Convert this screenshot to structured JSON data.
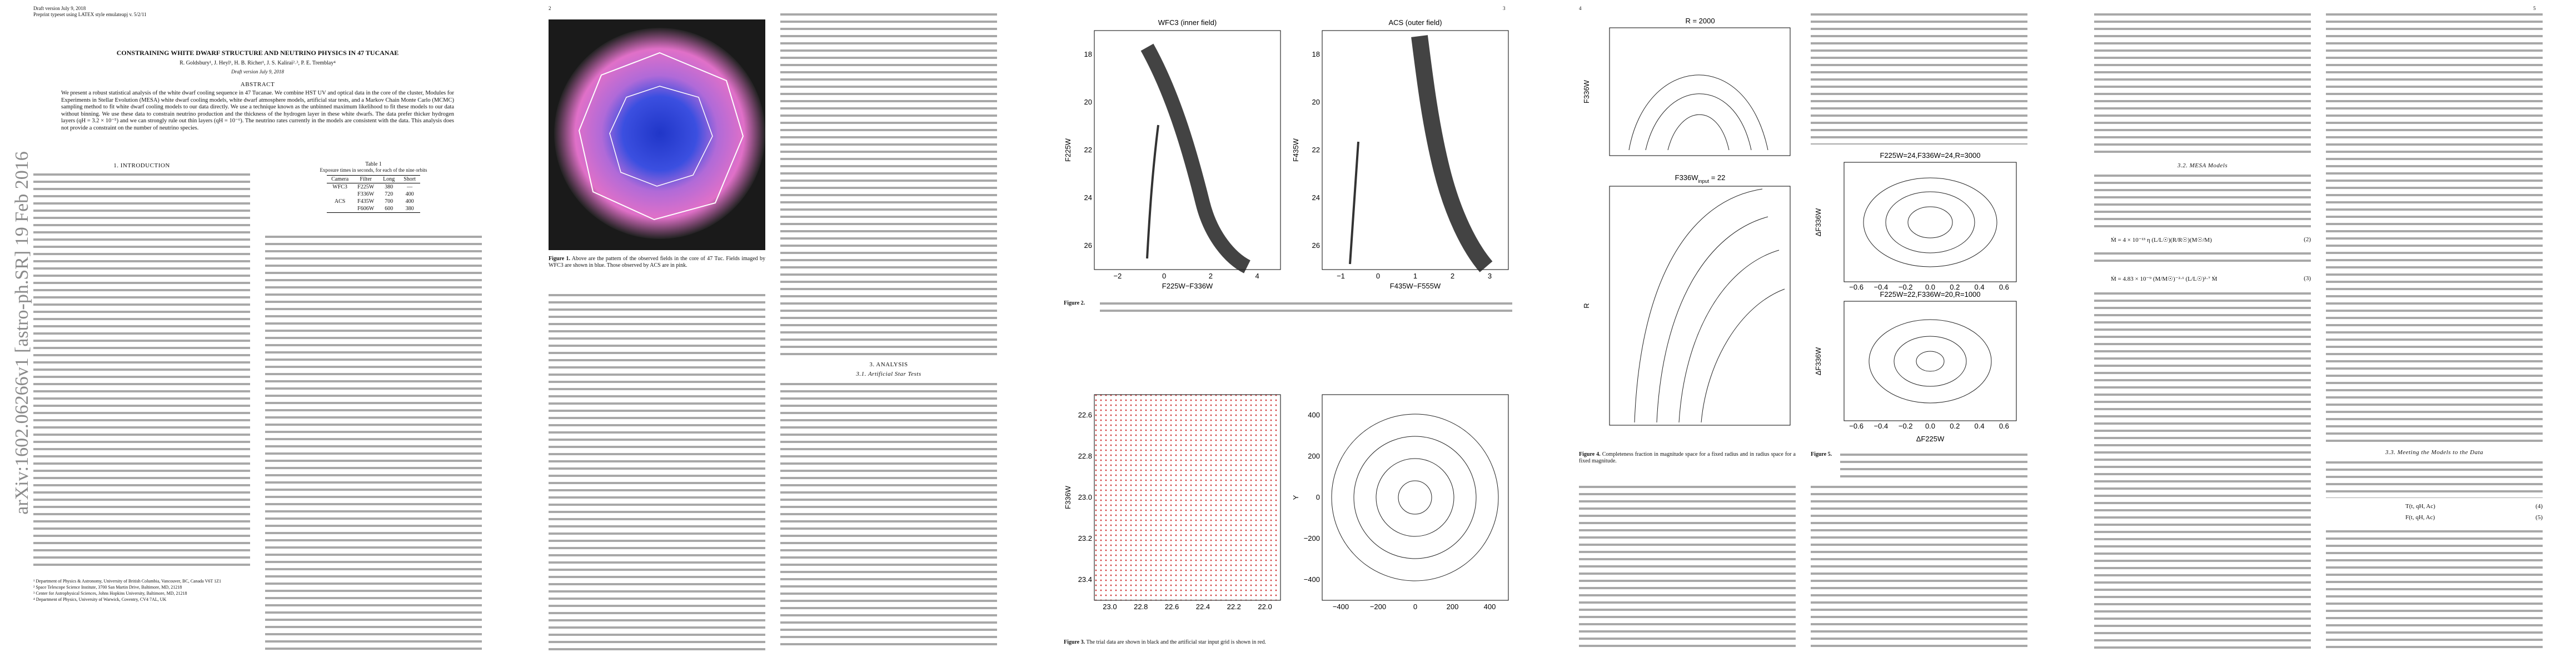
{
  "page1": {
    "preprint": [
      "Draft version July 9, 2018",
      "Preprint typeset using LATEX style emulateapj v. 5/2/11"
    ],
    "arxiv": "arXiv:1602.06266v1  [astro-ph.SR]  19 Feb 2016",
    "title": "CONSTRAINING WHITE DWARF STRUCTURE AND NEUTRINO PHYSICS IN 47 TUCANAE",
    "authors": "R. Goldsbury¹, J. Heyl¹, H. B. Richer¹, J. S. Kalirai²˒³, P. E. Tremblay⁴",
    "draft": "Draft version July 9, 2018",
    "abstract_heading": "ABSTRACT",
    "abstract": "We present a robust statistical analysis of the white dwarf cooling sequence in 47 Tucanae. We combine HST UV and optical data in the core of the cluster, Modules for Experiments in Stellar Evolution (MESA) white dwarf cooling models, white dwarf atmosphere models, artificial star tests, and a Markov Chain Monte Carlo (MCMC) sampling method to fit white dwarf cooling models to our data directly. We use a technique known as the unbinned maximum likelihood to fit these models to our data without binning. We use these data to constrain neutrino production and the thickness of the hydrogen layer in these white dwarfs. The data prefer thicker hydrogen layers (qH = 3.2 × 10⁻⁵) and we can strongly rule out thin layers (qH = 10⁻⁶). The neutrino rates currently in the models are consistent with the data. This analysis does not provide a constraint on the number of neutrino species.",
    "intro_heading": "1. INTRODUCTION",
    "footnotes": [
      "¹ Department of Physics & Astronomy, University of British Columbia, Vancouver, BC, Canada V6T 1Z1",
      "² Space Telescope Science Institute, 3700 San Martin Drive, Baltimore, MD, 21218",
      "³ Center for Astrophysical Sciences, Johns Hopkins University, Baltimore, MD, 21218",
      "⁴ Department of Physics, University of Warwick, Coventry, CV4 7AL, UK"
    ],
    "table": {
      "title": "Table 1",
      "caption": "Exposure times in seconds, for each of the nine orbits",
      "header": [
        "Camera",
        "Filter",
        "Long",
        "Short"
      ],
      "rows": [
        [
          "WFC3",
          "F225W",
          "380",
          "—"
        ],
        [
          "",
          "F336W",
          "720",
          "400"
        ],
        [
          "ACS",
          "F435W",
          "700",
          "400"
        ],
        [
          "",
          "F606W",
          "600",
          "380"
        ]
      ]
    }
  },
  "page2": {
    "number": "2",
    "fig1_label": "Figure 1.",
    "fig1_caption": "Above are the pattern of the observed fields in the core of 47 Tuc. Fields imaged by WFC3 are shown in blue. Those observed by ACS are in pink.",
    "analysis_heading": "3. ANALYSIS",
    "ast_heading": "3.1. Artificial Star Tests"
  },
  "page3": {
    "number": "3",
    "fig2": {
      "left": {
        "title": "WFC3 (inner field)",
        "xlabel": "F225W−F336W",
        "ylabel": "F225W",
        "xticks": [
          "−2",
          "0",
          "2",
          "4"
        ],
        "yticks": [
          "18",
          "20",
          "22",
          "24",
          "26"
        ]
      },
      "right": {
        "title": "ACS (outer field)",
        "xlabel": "F435W−F555W",
        "ylabel": "F435W",
        "xticks": [
          "−1",
          "0",
          "1",
          "2",
          "3"
        ],
        "yticks": [
          "18",
          "20",
          "22",
          "24",
          "26"
        ]
      },
      "label": "Figure 2."
    },
    "fig3": {
      "left": {
        "ylabel": "F336W",
        "xticks": [
          "23.0",
          "22.8",
          "22.6",
          "22.4",
          "22.2",
          "22.0"
        ],
        "yticks": [
          "22.6",
          "22.8",
          "23.0",
          "23.2",
          "23.4"
        ]
      },
      "right": {
        "ylabel": "Y",
        "xticks": [
          "−400",
          "−200",
          "0",
          "200",
          "400"
        ],
        "yticks": [
          "400",
          "200",
          "0",
          "−200",
          "−400"
        ]
      },
      "label": "Figure 3.",
      "caption": "The trial data are shown in black and the artificial star input grid is shown in red."
    }
  },
  "page4": {
    "number": "4",
    "fig4": {
      "top_title": "R = 2000",
      "bottom_title": "F336W",
      "bottom_sub": "input",
      "bottom_rest": " = 22",
      "top_ylabel": "F336W",
      "bottom_ylabel": "R",
      "label": "Figure 4.",
      "caption": "Completeness fraction in magnitude space for a fixed radius and in radius space for a fixed magnitude."
    },
    "fig5": {
      "top_title": "F225W=24,F336W=24,R=3000",
      "bottom_title": "F225W=22,F336W=20,R=1000",
      "ylabel": "ΔF336W",
      "xlabel": "ΔF225W",
      "xticks": [
        "−0.6",
        "−0.4",
        "−0.2",
        "0.0",
        "0.2",
        "0.4",
        "0.6"
      ],
      "label": "Figure 5."
    }
  },
  "page5": {
    "number": "5",
    "mesa_heading": "3.2. MESA Models",
    "meeting_heading": "3.3. Meeting the Models to the Data",
    "equations": [
      {
        "text": "Ṁ = 4 × 10⁻¹³ η (L/L☉)(R/R☉)(M☉/M)",
        "number": "(2)"
      },
      {
        "text": "Ṁ = 4.83 × 10⁻⁹ (M/M☉)⁻²·¹ (L/L☉)²·⁷ Ṁ",
        "number": "(3)"
      },
      {
        "text": "T(t, qH, Ac)",
        "number": "(4)"
      },
      {
        "text": "F(t, qH, Ac)",
        "number": "(5)"
      }
    ]
  }
}
